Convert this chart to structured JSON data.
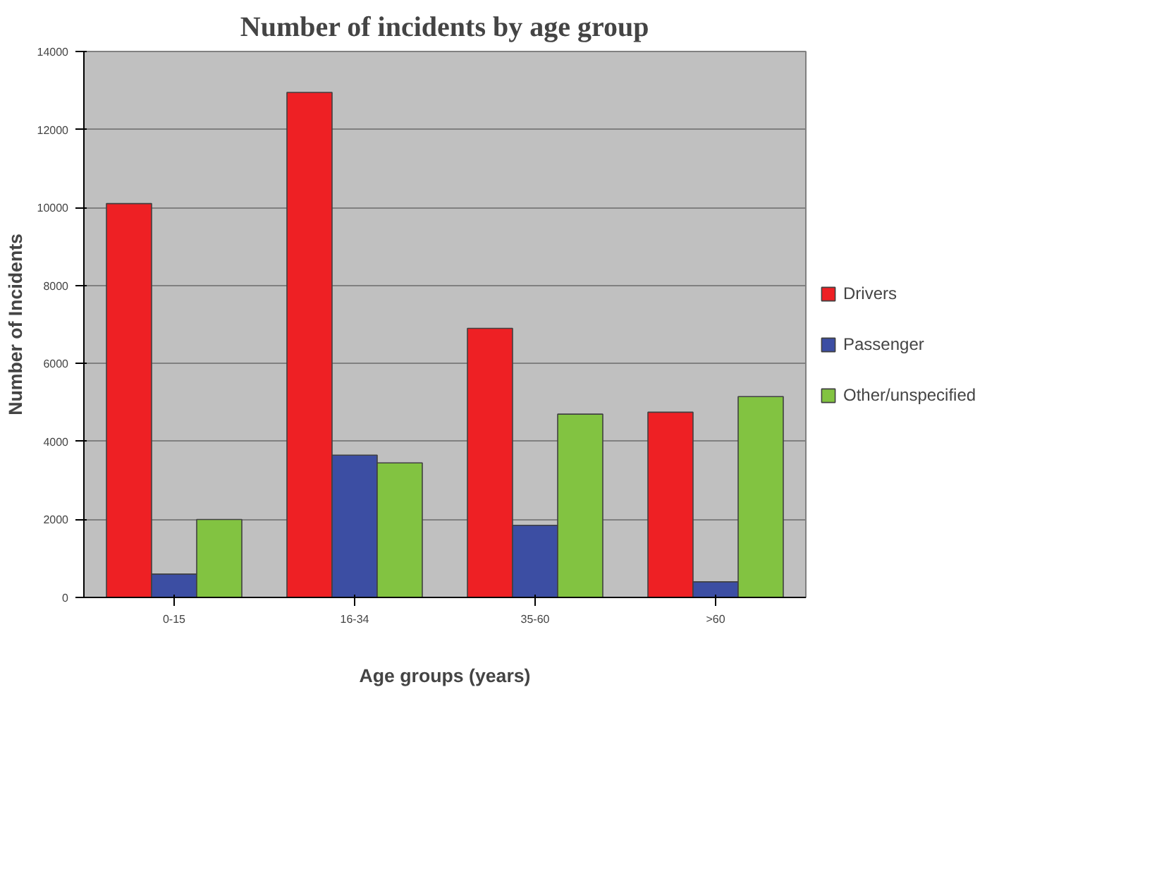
{
  "chart_data": {
    "type": "bar",
    "title": "Number of incidents by age group",
    "xlabel": "Age groups (years)",
    "ylabel": "Number of Incidents",
    "categories": [
      "0-15",
      "16-34",
      "35-60",
      ">60"
    ],
    "series": [
      {
        "name": "Drivers",
        "color": "#ee2024",
        "values": [
          10100,
          12950,
          6900,
          4750
        ]
      },
      {
        "name": "Passenger",
        "color": "#3c4ea3",
        "values": [
          600,
          3650,
          1850,
          400
        ]
      },
      {
        "name": "Other/unspecified",
        "color": "#82c341",
        "values": [
          2000,
          3450,
          4700,
          5150
        ]
      }
    ],
    "ylim": [
      0,
      14000
    ],
    "yticks": [
      0,
      2000,
      4000,
      6000,
      8000,
      10000,
      12000,
      14000
    ],
    "grid": "y",
    "legend": "right"
  }
}
